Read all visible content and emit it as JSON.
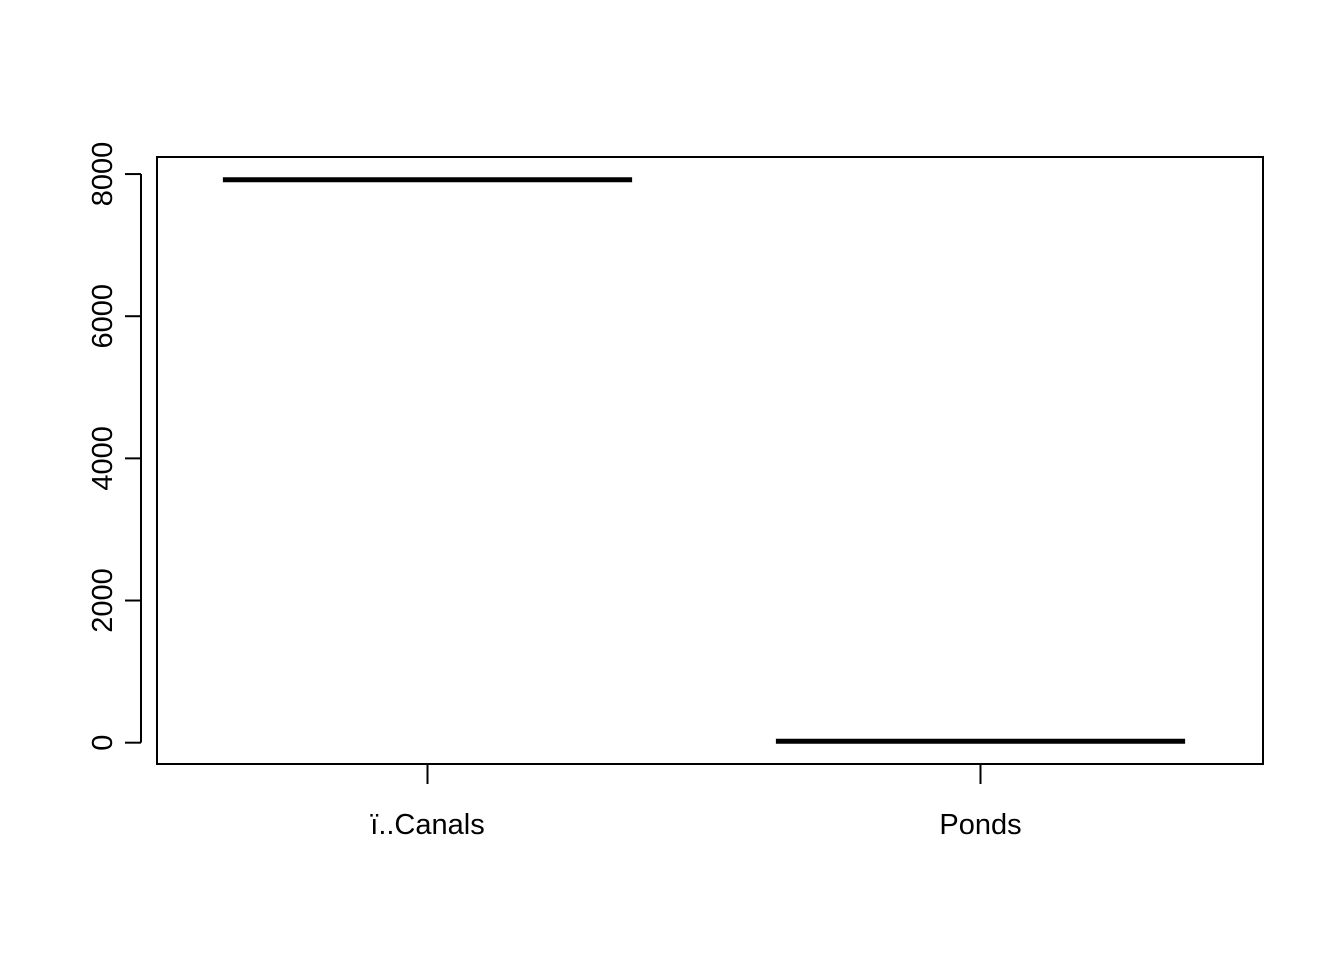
{
  "chart_data": {
    "type": "boxplot",
    "categories": [
      "ï..Canals",
      "Ponds"
    ],
    "values": [
      7920,
      20
    ],
    "title": "",
    "xlabel": "",
    "ylabel": "",
    "yticks": [
      0,
      2000,
      4000,
      6000,
      8000
    ],
    "ylim": [
      -300,
      8240
    ],
    "grid": false,
    "legend": "none"
  }
}
